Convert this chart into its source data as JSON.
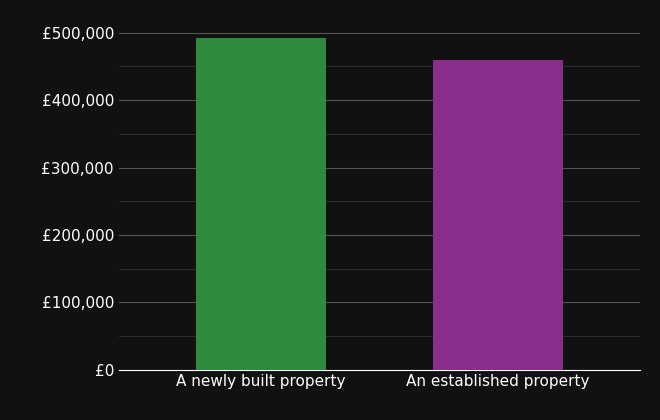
{
  "categories": [
    "A newly built property",
    "An established property"
  ],
  "values": [
    493000,
    460000
  ],
  "bar_colors": [
    "#2e8b3e",
    "#8b2d8b"
  ],
  "background_color": "#111111",
  "text_color": "#ffffff",
  "grid_color": "#555555",
  "minor_grid_color": "#333333",
  "ylim": [
    0,
    530000
  ],
  "ytick_major": [
    0,
    100000,
    200000,
    300000,
    400000,
    500000
  ],
  "ytick_minor": [
    50000,
    150000,
    250000,
    350000,
    450000
  ],
  "bar_width": 0.55,
  "xlabel": "",
  "ylabel": "",
  "tick_label_fontsize": 11
}
